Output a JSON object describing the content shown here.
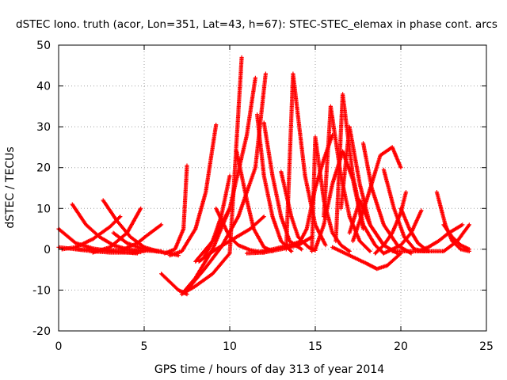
{
  "chart_data": {
    "type": "scatter",
    "title": "dSTEC Iono. truth (acor, Lon=351, Lat=43, h=67): STEC-STEC_elemax in phase cont. arcs",
    "xlabel": "GPS time / hours of day 313 of year 2014",
    "ylabel": "dSTEC  / TECUs",
    "xlim": [
      0,
      25
    ],
    "ylim": [
      -20,
      50
    ],
    "x_ticks": [
      0,
      5,
      10,
      15,
      20,
      25
    ],
    "y_ticks": [
      -20,
      -10,
      0,
      10,
      20,
      30,
      40,
      50
    ],
    "x_tick_labels": [
      "0",
      "5",
      "10",
      "15",
      "20",
      "25"
    ],
    "y_tick_labels": [
      "-20",
      "-10",
      "0",
      "10",
      "20",
      "30",
      "40",
      "50"
    ],
    "grid": true,
    "legend": "none",
    "marker": "plus",
    "color": "#ff0000",
    "series": [
      {
        "x": [
          0.0,
          1.0,
          2.0,
          3.0,
          4.0,
          4.6
        ],
        "y": [
          5.0,
          1.5,
          0.2,
          -0.4,
          -0.8,
          -1.0
        ]
      },
      {
        "x": [
          0.0,
          1.0,
          2.0,
          3.0,
          4.0,
          4.8
        ],
        "y": [
          0.5,
          0.0,
          -0.5,
          -0.8,
          -0.8,
          -0.7
        ]
      },
      {
        "x": [
          0.8,
          1.6,
          2.4,
          3.2,
          4.0,
          5.0
        ],
        "y": [
          11.0,
          6.0,
          3.0,
          1.0,
          0.0,
          -0.5
        ]
      },
      {
        "x": [
          0.2,
          1.0,
          2.0,
          3.0,
          3.6
        ],
        "y": [
          0.0,
          0.5,
          2.5,
          5.5,
          8.0
        ]
      },
      {
        "x": [
          2.6,
          3.4,
          4.2,
          5.0,
          5.8
        ],
        "y": [
          12.0,
          7.0,
          3.0,
          0.5,
          -0.5
        ]
      },
      {
        "x": [
          2.0,
          3.0,
          4.0,
          4.8
        ],
        "y": [
          -0.8,
          0.5,
          4.0,
          10.0
        ]
      },
      {
        "x": [
          3.2,
          4.0,
          5.0,
          6.0
        ],
        "y": [
          4.0,
          1.5,
          0.0,
          -0.5
        ]
      },
      {
        "x": [
          3.8,
          4.6,
          5.2,
          6.0
        ],
        "y": [
          0.0,
          1.5,
          3.5,
          6.0
        ]
      },
      {
        "x": [
          1.0,
          2.5,
          4.0,
          5.5,
          6.5,
          7.0
        ],
        "y": [
          0.0,
          -0.2,
          -0.2,
          -0.4,
          -1.0,
          -1.5
        ]
      },
      {
        "x": [
          6.0,
          6.5,
          7.0,
          7.5
        ],
        "y": [
          -6.0,
          -8.0,
          -10.0,
          -11.0
        ]
      },
      {
        "x": [
          6.2,
          6.8,
          7.3,
          7.5
        ],
        "y": [
          -1.0,
          0.0,
          5.0,
          20.5
        ]
      },
      {
        "x": [
          6.5,
          7.2,
          8.0,
          8.6,
          9.2
        ],
        "y": [
          -1.5,
          -0.5,
          5.0,
          14.0,
          30.5
        ]
      },
      {
        "x": [
          7.2,
          8.0,
          9.0,
          10.0,
          10.7
        ],
        "y": [
          -11.0,
          -9.0,
          -6.0,
          -1.0,
          47.0
        ]
      },
      {
        "x": [
          7.3,
          8.0,
          9.0,
          10.0,
          11.0,
          11.5
        ],
        "y": [
          -10.5,
          -7.0,
          0.0,
          10.0,
          28.0,
          42.0
        ]
      },
      {
        "x": [
          7.5,
          8.5,
          9.5,
          10.5,
          11.5,
          12.1
        ],
        "y": [
          -10.0,
          -5.0,
          0.5,
          8.0,
          20.0,
          43.0
        ]
      },
      {
        "x": [
          8.0,
          9.0,
          9.5,
          10.0
        ],
        "y": [
          -3.0,
          2.0,
          6.0,
          10.0
        ]
      },
      {
        "x": [
          8.5,
          9.0,
          9.5,
          10.0
        ],
        "y": [
          -2.0,
          2.0,
          8.0,
          18.0
        ]
      },
      {
        "x": [
          8.2,
          9.2,
          10.2,
          11.2,
          12.0
        ],
        "y": [
          -3.0,
          0.0,
          2.5,
          5.0,
          8.0
        ]
      },
      {
        "x": [
          9.2,
          10.0,
          10.5,
          11.2,
          12.0
        ],
        "y": [
          10.0,
          3.0,
          1.0,
          -0.2,
          -0.8
        ]
      },
      {
        "x": [
          10.4,
          11.0,
          11.4,
          12.0,
          12.5
        ],
        "y": [
          24.0,
          12.0,
          5.0,
          0.5,
          -0.5
        ]
      },
      {
        "x": [
          11.6,
          12.0,
          12.5,
          13.0,
          13.6
        ],
        "y": [
          33.0,
          18.0,
          8.0,
          2.0,
          -0.5
        ]
      },
      {
        "x": [
          12.0,
          12.5,
          13.0,
          13.5,
          14.2
        ],
        "y": [
          31.0,
          18.0,
          8.0,
          2.0,
          0.0
        ]
      },
      {
        "x": [
          11.5,
          12.5,
          13.5,
          14.2
        ],
        "y": [
          -0.8,
          0.0,
          1.0,
          2.0
        ]
      },
      {
        "x": [
          11.0,
          12.0,
          13.0,
          14.0,
          14.8
        ],
        "y": [
          -1.0,
          -0.8,
          0.0,
          1.0,
          3.0
        ]
      },
      {
        "x": [
          13.0,
          13.6,
          14.0,
          14.6,
          15.0
        ],
        "y": [
          19.0,
          8.0,
          3.0,
          0.5,
          -0.3
        ]
      },
      {
        "x": [
          13.3,
          13.7,
          14.4,
          15.0,
          15.6
        ],
        "y": [
          0.0,
          43.0,
          18.0,
          6.0,
          1.0
        ]
      },
      {
        "x": [
          14.0,
          14.5,
          15.0,
          15.5,
          16.0
        ],
        "y": [
          1.0,
          5.0,
          15.0,
          22.0,
          28.0
        ]
      },
      {
        "x": [
          14.8,
          15.0,
          15.5,
          16.0,
          16.5,
          17.0
        ],
        "y": [
          -0.5,
          27.5,
          12.0,
          4.0,
          1.0,
          -0.5
        ]
      },
      {
        "x": [
          15.0,
          15.5,
          16.0,
          16.6,
          17.2,
          17.8
        ],
        "y": [
          0.0,
          6.0,
          16.0,
          24.0,
          17.0,
          5.0
        ]
      },
      {
        "x": [
          15.5,
          15.9,
          16.5,
          17.0,
          17.6,
          18.2
        ],
        "y": [
          8.0,
          35.0,
          18.0,
          8.0,
          2.0,
          -0.5
        ]
      },
      {
        "x": [
          16.2,
          16.6,
          17.2,
          17.8,
          18.5,
          19.0
        ],
        "y": [
          2.0,
          38.0,
          18.0,
          6.0,
          1.0,
          -1.0
        ]
      },
      {
        "x": [
          16.5,
          17.0,
          17.6,
          18.2,
          19.0
        ],
        "y": [
          10.0,
          30.0,
          16.0,
          6.0,
          1.0
        ]
      },
      {
        "x": [
          17.0,
          17.6,
          18.2,
          19.0,
          19.8
        ],
        "y": [
          4.0,
          12.0,
          6.0,
          1.0,
          -1.0
        ]
      },
      {
        "x": [
          17.8,
          18.3,
          19.0,
          19.8,
          20.6
        ],
        "y": [
          26.0,
          15.0,
          6.0,
          1.0,
          -1.0
        ]
      },
      {
        "x": [
          17.2,
          18.0,
          18.8,
          19.5,
          20.0
        ],
        "y": [
          2.0,
          12.0,
          23.0,
          25.0,
          20.0
        ]
      },
      {
        "x": [
          19.0,
          19.6,
          20.2,
          20.8,
          21.4
        ],
        "y": [
          19.5,
          10.0,
          3.0,
          0.0,
          -0.5
        ]
      },
      {
        "x": [
          16.0,
          17.0,
          18.0,
          18.6,
          19.2,
          20.0
        ],
        "y": [
          0.5,
          -1.5,
          -3.5,
          -4.8,
          -4.0,
          -1.0
        ]
      },
      {
        "x": [
          18.5,
          19.0,
          19.5,
          20.0,
          20.3
        ],
        "y": [
          -1.0,
          1.0,
          4.0,
          9.0,
          14.0
        ]
      },
      {
        "x": [
          20.0,
          20.5,
          21.0,
          21.6
        ],
        "y": [
          10.0,
          5.0,
          1.5,
          -0.5
        ]
      },
      {
        "x": [
          19.0,
          20.0,
          20.6,
          21.2
        ],
        "y": [
          -1.0,
          1.0,
          4.0,
          9.5
        ]
      },
      {
        "x": [
          21.0,
          21.6,
          22.2,
          22.8,
          23.6
        ],
        "y": [
          -0.5,
          0.5,
          2.0,
          4.0,
          6.0
        ]
      },
      {
        "x": [
          22.1,
          22.6,
          23.0,
          23.5,
          24.0
        ],
        "y": [
          14.0,
          6.0,
          2.0,
          0.0,
          -0.5
        ]
      },
      {
        "x": [
          19.5,
          20.5,
          21.5,
          22.5,
          23.3,
          24.0
        ],
        "y": [
          -0.5,
          -0.5,
          -0.5,
          -0.5,
          2.0,
          6.0
        ]
      },
      {
        "x": [
          22.5,
          23.0,
          23.5,
          24.0
        ],
        "y": [
          6.0,
          3.0,
          1.0,
          0.0
        ]
      }
    ]
  }
}
